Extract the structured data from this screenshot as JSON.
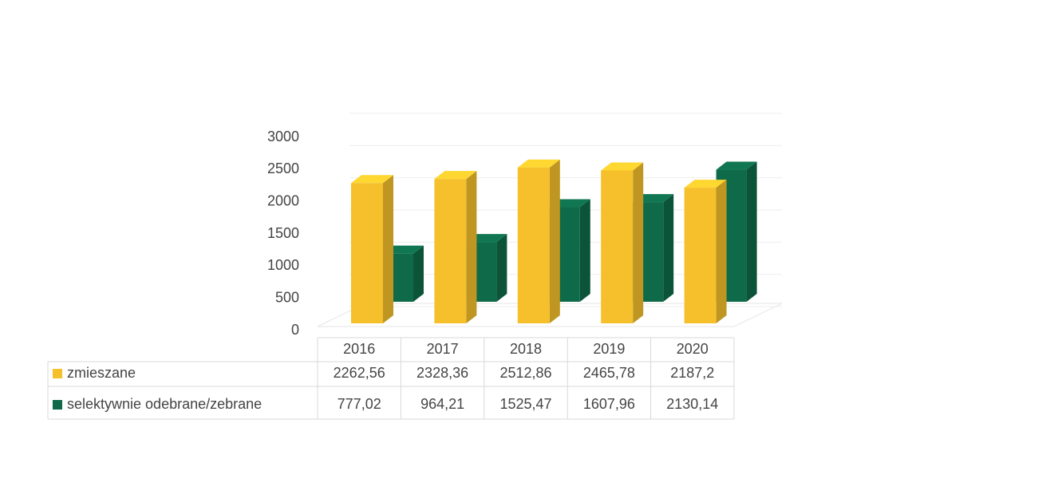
{
  "chart_data": {
    "type": "bar3d",
    "categories": [
      "2016",
      "2017",
      "2018",
      "2019",
      "2020"
    ],
    "series": [
      {
        "name": "zmieszane",
        "color": "#f5c02c",
        "values": [
          2262.56,
          2328.36,
          2512.86,
          2465.78,
          2187.2
        ],
        "value_labels": [
          "2262,56",
          "2328,36",
          "2512,86",
          "2465,78",
          "2187,2"
        ]
      },
      {
        "name": "selektywnie odebrane/zebrane",
        "color": "#0e6a49",
        "values": [
          777.02,
          964.21,
          1525.47,
          1607.96,
          2130.14
        ],
        "value_labels": [
          "777,02",
          "964,21",
          "1525,47",
          "1607,96",
          "2130,14"
        ]
      }
    ],
    "ylim": [
      0,
      3000
    ],
    "yticks": [
      0,
      500,
      1000,
      1500,
      2000,
      2500,
      3000
    ],
    "grid": true
  }
}
